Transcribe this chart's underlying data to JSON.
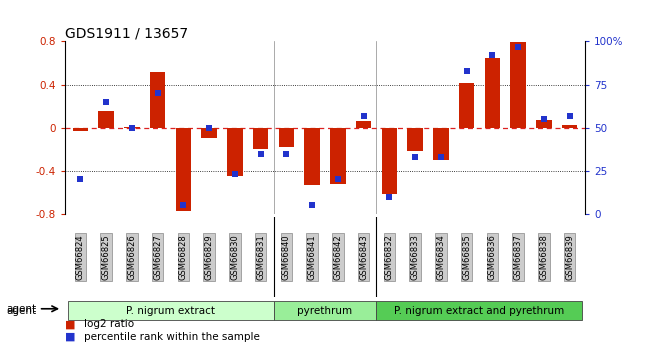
{
  "title": "GDS1911 / 13657",
  "samples": [
    "GSM66824",
    "GSM66825",
    "GSM66826",
    "GSM66827",
    "GSM66828",
    "GSM66829",
    "GSM66830",
    "GSM66831",
    "GSM66840",
    "GSM66841",
    "GSM66842",
    "GSM66843",
    "GSM66832",
    "GSM66833",
    "GSM66834",
    "GSM66835",
    "GSM66836",
    "GSM66837",
    "GSM66838",
    "GSM66839"
  ],
  "log2_ratio": [
    -0.03,
    0.15,
    0.01,
    0.52,
    -0.77,
    -0.1,
    -0.45,
    -0.2,
    -0.18,
    -0.53,
    -0.52,
    0.06,
    -0.62,
    -0.22,
    -0.3,
    0.41,
    0.65,
    0.79,
    0.07,
    0.02
  ],
  "pct_rank": [
    20,
    65,
    50,
    70,
    5,
    50,
    23,
    35,
    35,
    5,
    20,
    57,
    10,
    33,
    33,
    83,
    92,
    97,
    55,
    57
  ],
  "groups": [
    {
      "label": "P. nigrum extract",
      "start": 0,
      "end": 8,
      "color": "#ccffcc"
    },
    {
      "label": "pyrethrum",
      "start": 8,
      "end": 12,
      "color": "#99ee99"
    },
    {
      "label": "P. nigrum extract and pyrethrum",
      "start": 12,
      "end": 20,
      "color": "#55cc55"
    }
  ],
  "ylim": [
    -0.8,
    0.8
  ],
  "y2lim": [
    0,
    100
  ],
  "bar_color": "#cc2200",
  "dot_color": "#2233cc",
  "zero_line_color": "#dd2222",
  "background_color": "#ffffff"
}
